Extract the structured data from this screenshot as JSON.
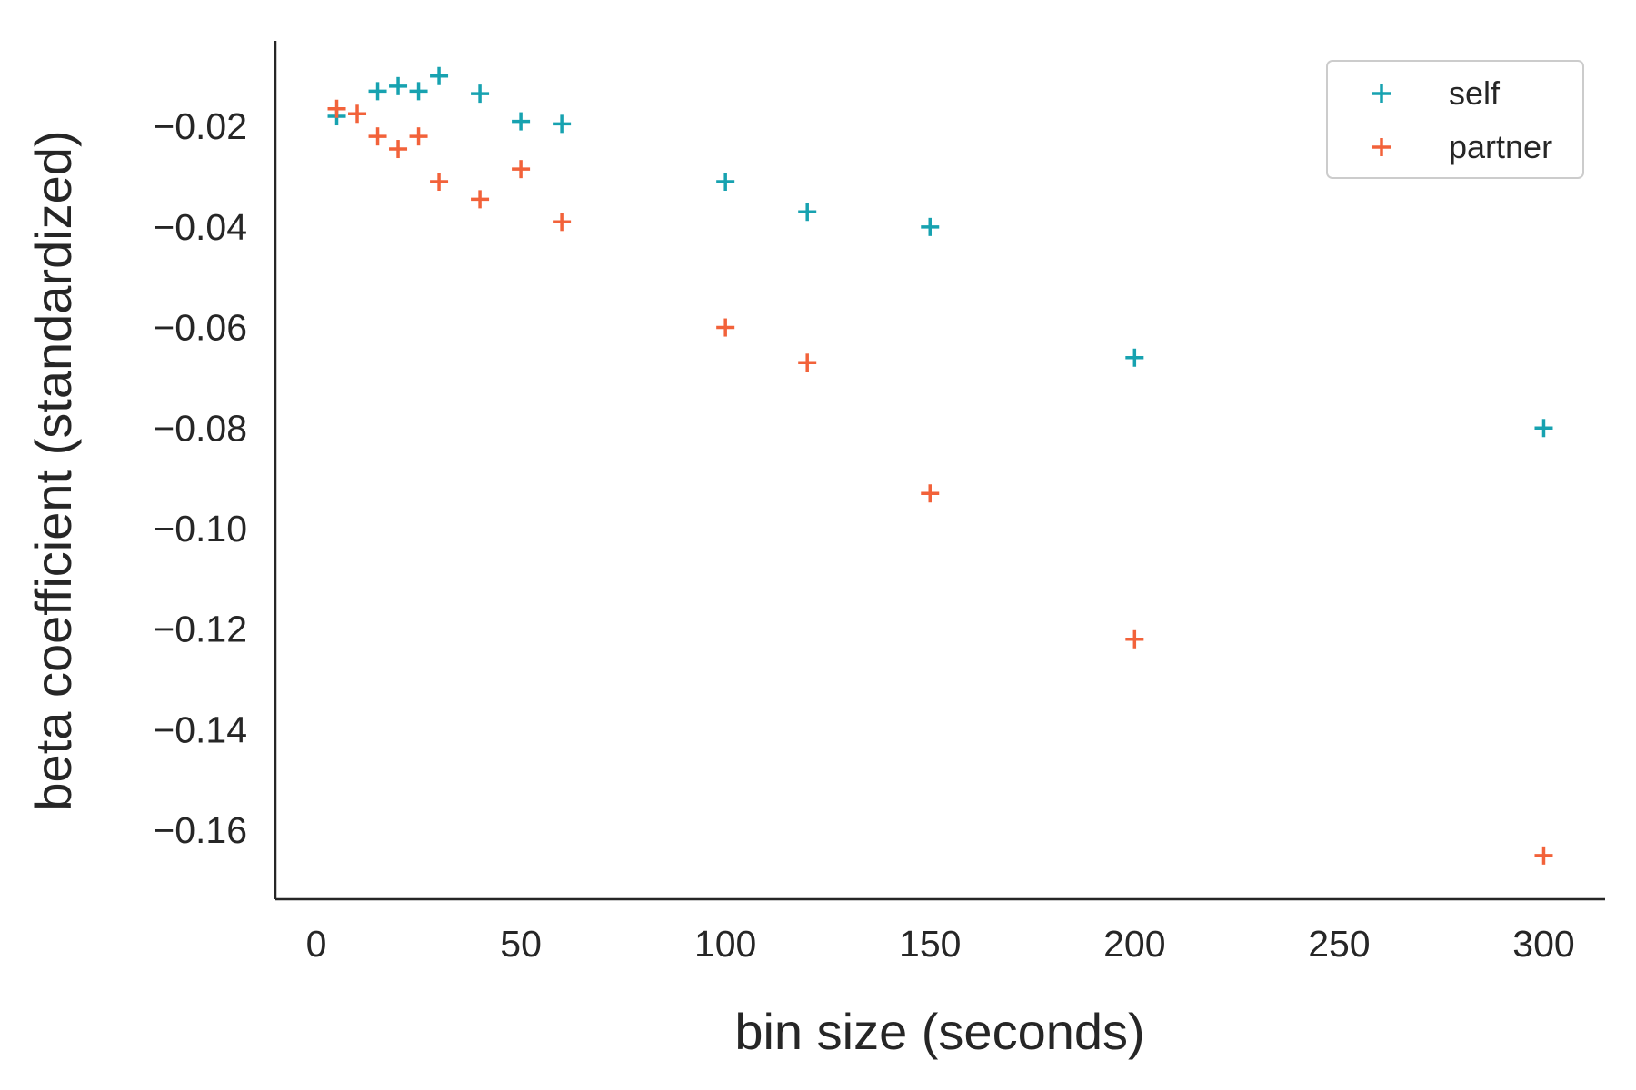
{
  "chart_data": {
    "type": "scatter",
    "title": "",
    "xlabel": "bin size (seconds)",
    "ylabel": "beta coefficient (standardized)",
    "xlim": [
      -10,
      315
    ],
    "ylim": [
      -0.1737,
      -0.003
    ],
    "xticks": [
      0,
      50,
      100,
      150,
      200,
      250,
      300
    ],
    "xtick_labels": [
      "0",
      "50",
      "100",
      "150",
      "200",
      "250",
      "300"
    ],
    "yticks": [
      -0.02,
      -0.04,
      -0.06,
      -0.08,
      -0.1,
      -0.12,
      -0.14,
      -0.16
    ],
    "ytick_labels": [
      "−0.02",
      "−0.04",
      "−0.06",
      "−0.08",
      "−0.10",
      "−0.12",
      "−0.14",
      "−0.16"
    ],
    "grid": false,
    "legend_position": "top-right",
    "marker": "+",
    "series": [
      {
        "name": "self",
        "color": "#17a2b0",
        "x": [
          5,
          15,
          20,
          25,
          30,
          40,
          50,
          60,
          100,
          120,
          150,
          200,
          300
        ],
        "y": [
          -0.018,
          -0.013,
          -0.012,
          -0.013,
          -0.01,
          -0.0135,
          -0.019,
          -0.0195,
          -0.031,
          -0.037,
          -0.04,
          -0.066,
          -0.08
        ]
      },
      {
        "name": "partner",
        "color": "#f2623a",
        "x": [
          5,
          10,
          15,
          20,
          25,
          30,
          40,
          50,
          60,
          100,
          120,
          150,
          200,
          300
        ],
        "y": [
          -0.0165,
          -0.0175,
          -0.022,
          -0.0245,
          -0.022,
          -0.031,
          -0.0345,
          -0.0285,
          -0.039,
          -0.06,
          -0.067,
          -0.093,
          -0.122,
          -0.165
        ]
      }
    ]
  }
}
